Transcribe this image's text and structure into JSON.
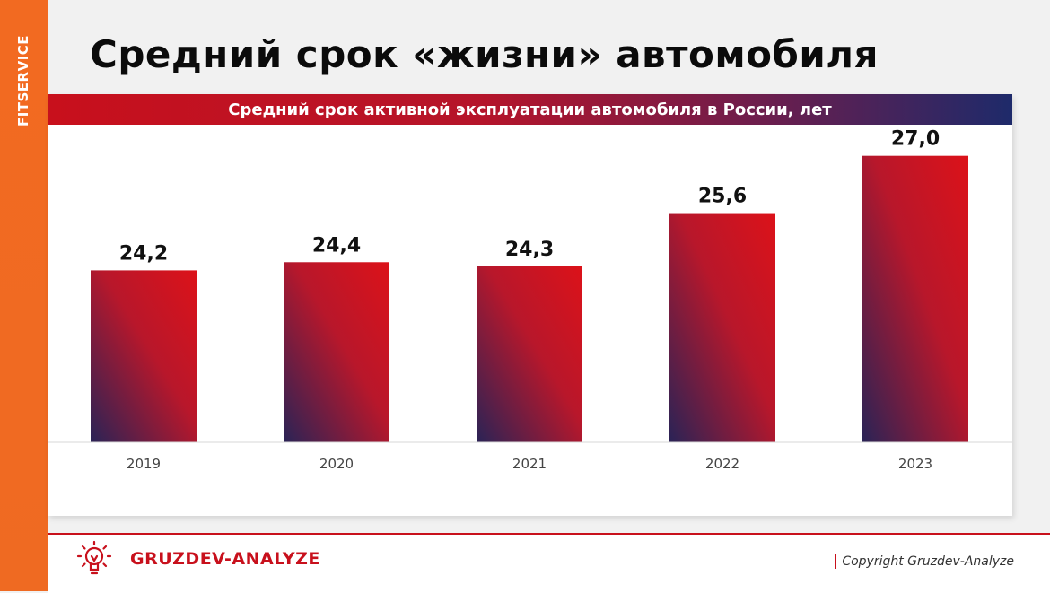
{
  "brand": {
    "sidebar_label": "FITSERVICE",
    "footer_name": "GRUZDEV-ANALYZE",
    "copyright": "Copyright Gruzdev-Analyze"
  },
  "page": {
    "title": "Средний срок «жизни» автомобиля"
  },
  "colors": {
    "accent_orange": "#f26a21",
    "bar_red": "#d8141f",
    "bar_navy": "#2a2356",
    "banner_red": "#c8101c",
    "banner_navy": "#1e2a6a"
  },
  "chart_data": {
    "type": "bar",
    "title": "Средний срок активной эксплуатации автомобиля в России, лет",
    "categories": [
      "2019",
      "2020",
      "2021",
      "2022",
      "2023"
    ],
    "values": [
      24.2,
      24.4,
      24.3,
      25.6,
      27.0
    ],
    "value_labels": [
      "24,2",
      "24,4",
      "24,3",
      "25,6",
      "27,0"
    ],
    "xlabel": "",
    "ylabel": "",
    "ylim": [
      20,
      27.3
    ],
    "grid": false,
    "legend": "none"
  }
}
